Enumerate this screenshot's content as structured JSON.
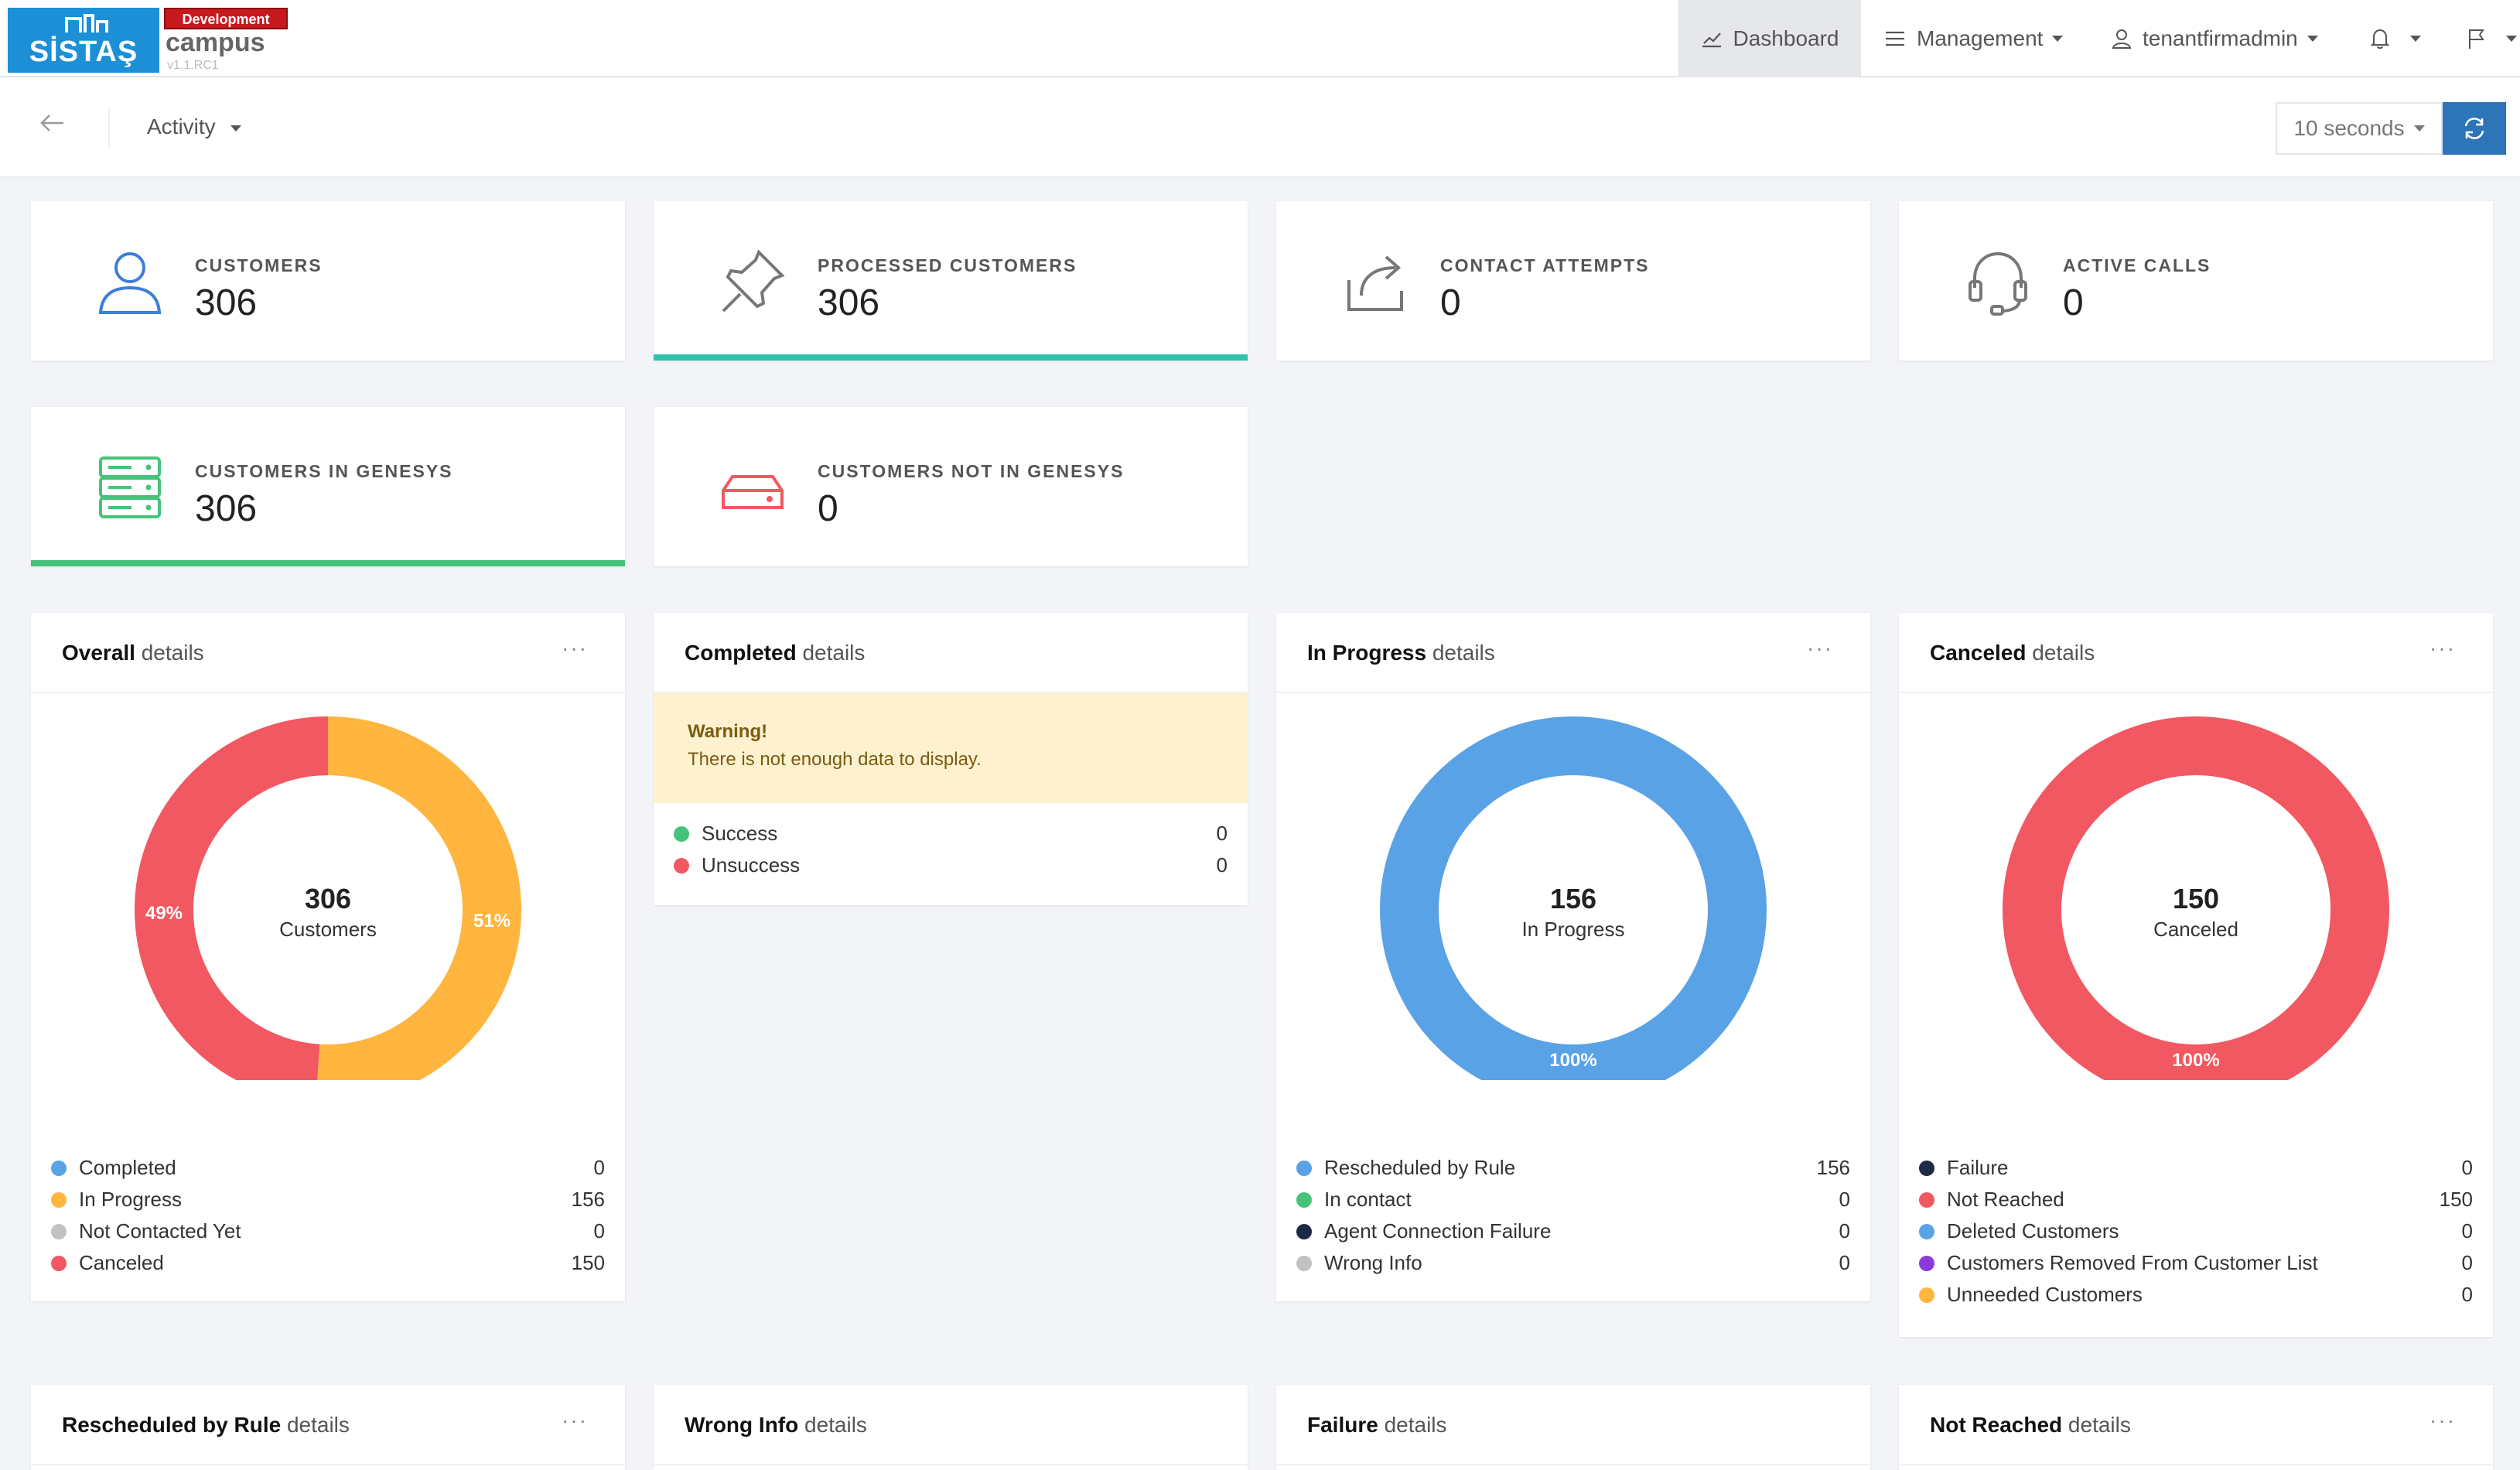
{
  "header": {
    "logo_text": "SİSTAŞ",
    "env_badge": "Development",
    "product": "campus",
    "version": "v1.1.RC1",
    "nav": {
      "dashboard": "Dashboard",
      "management": "Management",
      "user": "tenantfirmadmin"
    }
  },
  "subbar": {
    "section": "Activity",
    "interval": "10 seconds"
  },
  "stats": [
    {
      "label": "CUSTOMERS",
      "value": "306"
    },
    {
      "label": "PROCESSED CUSTOMERS",
      "value": "306"
    },
    {
      "label": "CONTACT ATTEMPTS",
      "value": "0"
    },
    {
      "label": "ACTIVE CALLS",
      "value": "0"
    },
    {
      "label": "CUSTOMERS IN GENESYS",
      "value": "306"
    },
    {
      "label": "CUSTOMERS NOT IN GENESYS",
      "value": "0"
    }
  ],
  "colors": {
    "blue": "#5aa2e6",
    "green": "#46c37b",
    "navy": "#1e2a45",
    "gray": "#c2c2c2",
    "red": "#f25861",
    "orange": "#ffb53e",
    "purple": "#8b3bdc",
    "teal": "#2ec4b0"
  },
  "cards": {
    "overall": {
      "title_bold": "Overall",
      "title_rest": " details",
      "menu": "···",
      "center_value": "306",
      "center_label": "Customers",
      "pct_left": "49%",
      "pct_right": "51%",
      "legend": [
        {
          "label": "Completed",
          "value": "0"
        },
        {
          "label": "In Progress",
          "value": "156"
        },
        {
          "label": "Not Contacted Yet",
          "value": "0"
        },
        {
          "label": "Canceled",
          "value": "150"
        }
      ]
    },
    "completed": {
      "title_bold": "Completed",
      "title_rest": " details",
      "warning_title": "Warning!",
      "warning_text": "There is not enough data to display.",
      "legend": [
        {
          "label": "Success",
          "value": "0"
        },
        {
          "label": "Unsuccess",
          "value": "0"
        }
      ]
    },
    "in_progress": {
      "title_bold": "In Progress",
      "title_rest": " details",
      "menu": "···",
      "center_value": "156",
      "center_label": "In Progress",
      "pct": "100%",
      "legend": [
        {
          "label": "Rescheduled by Rule",
          "value": "156"
        },
        {
          "label": "In contact",
          "value": "0"
        },
        {
          "label": "Agent Connection Failure",
          "value": "0"
        },
        {
          "label": "Wrong Info",
          "value": "0"
        }
      ]
    },
    "canceled": {
      "title_bold": "Canceled",
      "title_rest": " details",
      "menu": "···",
      "center_value": "150",
      "center_label": "Canceled",
      "pct": "100%",
      "legend": [
        {
          "label": "Failure",
          "value": "0"
        },
        {
          "label": "Not Reached",
          "value": "150"
        },
        {
          "label": "Deleted Customers",
          "value": "0"
        },
        {
          "label": "Customers Removed From Customer List",
          "value": "0"
        },
        {
          "label": "Unneeded Customers",
          "value": "0"
        }
      ]
    },
    "bottom": [
      {
        "title_bold": "Rescheduled by Rule",
        "title_rest": " details",
        "menu": "···"
      },
      {
        "title_bold": "Wrong Info",
        "title_rest": " details",
        "menu": ""
      },
      {
        "title_bold": "Failure",
        "title_rest": " details",
        "menu": ""
      },
      {
        "title_bold": "Not Reached",
        "title_rest": " details",
        "menu": "···"
      }
    ]
  },
  "chart_data": [
    {
      "type": "pie",
      "title": "Overall details",
      "categories": [
        "Completed",
        "In Progress",
        "Not Contacted Yet",
        "Canceled"
      ],
      "values": [
        0,
        156,
        0,
        150
      ],
      "labels": [
        "",
        "51%",
        "",
        "49%"
      ],
      "center_text": "306 Customers"
    },
    {
      "type": "pie",
      "title": "In Progress details",
      "categories": [
        "Rescheduled by Rule",
        "In contact",
        "Agent Connection Failure",
        "Wrong Info"
      ],
      "values": [
        156,
        0,
        0,
        0
      ],
      "labels": [
        "100%",
        "",
        "",
        ""
      ],
      "center_text": "156 In Progress"
    },
    {
      "type": "pie",
      "title": "Canceled details",
      "categories": [
        "Failure",
        "Not Reached",
        "Deleted Customers",
        "Customers Removed From Customer List",
        "Unneeded Customers"
      ],
      "values": [
        0,
        150,
        0,
        0,
        0
      ],
      "labels": [
        "",
        "100%",
        "",
        "",
        ""
      ],
      "center_text": "150 Canceled"
    }
  ]
}
